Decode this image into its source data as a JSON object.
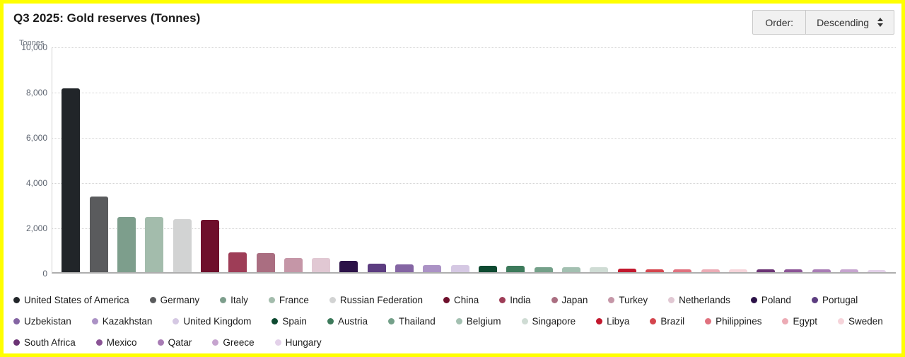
{
  "header": {
    "title": "Q3 2025: Gold reserves (Tonnes)"
  },
  "order_control": {
    "label": "Order:",
    "selected": "Descending",
    "icon": "sort-updown-arrows"
  },
  "chart_data": {
    "type": "bar",
    "title": "Q3 2025: Gold reserves (Tonnes)",
    "xlabel": "",
    "ylabel": "Tonnes",
    "ylim": [
      0,
      10000
    ],
    "ytick_labels": [
      "10,000",
      "8,000",
      "6,000",
      "4,000",
      "2,000",
      "0"
    ],
    "grid": "dotted-horizontal",
    "legend_position": "bottom",
    "legend_row_breaks": [
      12,
      13,
      5
    ],
    "categories": [
      "United States of America",
      "Germany",
      "Italy",
      "France",
      "Russian Federation",
      "China",
      "India",
      "Japan",
      "Turkey",
      "Netherlands",
      "Poland",
      "Portugal",
      "Uzbekistan",
      "Kazakhstan",
      "United Kingdom",
      "Spain",
      "Austria",
      "Thailand",
      "Belgium",
      "Singapore",
      "Libya",
      "Brazil",
      "Philippines",
      "Egypt",
      "Sweden",
      "South Africa",
      "Mexico",
      "Qatar",
      "Greece",
      "Hungary"
    ],
    "values": [
      8133.5,
      3350.3,
      2451.9,
      2437.0,
      2329.6,
      2303.5,
      880.2,
      846.0,
      634.8,
      612.5,
      515.3,
      382.7,
      355.9,
      316.2,
      310.3,
      281.6,
      280.0,
      234.5,
      227.4,
      219.9,
      146.7,
      129.6,
      127.4,
      126.6,
      125.7,
      125.4,
      120.2,
      116.6,
      114.5,
      94.5
    ],
    "colors": [
      "#212529",
      "#5a5b5d",
      "#7d9e8c",
      "#a3bcac",
      "#d2d3d3",
      "#6e0f2b",
      "#9e3d57",
      "#aa6e81",
      "#c596a7",
      "#e1c8d3",
      "#2c1248",
      "#5c3d80",
      "#8465a3",
      "#ab92c5",
      "#d5c8e3",
      "#0e4a31",
      "#3d7a5b",
      "#74a089",
      "#a3c0b1",
      "#cfdcd4",
      "#c2182e",
      "#d4454d",
      "#e0717e",
      "#ecabb5",
      "#f6d4da",
      "#6b3374",
      "#8b5496",
      "#a87cb5",
      "#c6a4cf",
      "#e3d1e9"
    ]
  }
}
